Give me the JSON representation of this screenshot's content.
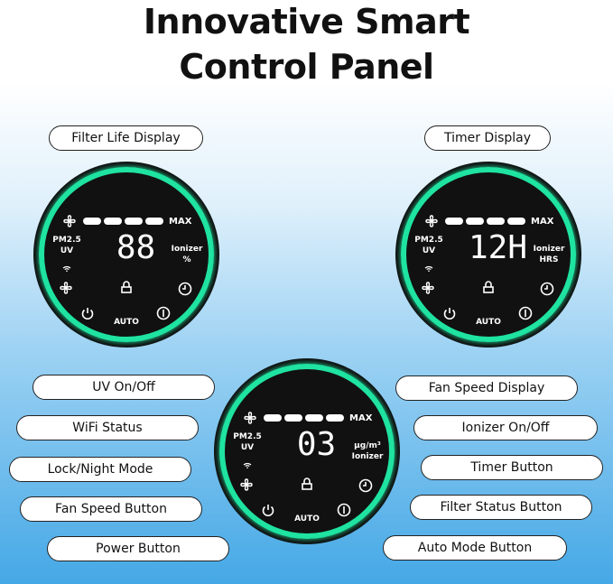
{
  "title": {
    "line1": "Innovative Smart",
    "line2": "Control Panel"
  },
  "labels": {
    "filter_life": "Filter Life Display",
    "timer_display": "Timer Display",
    "uv": "UV On/Off",
    "wifi": "WiFi Status",
    "lock": "Lock/Night Mode",
    "fan_btn": "Fan Speed Button",
    "power": "Power Button",
    "fan_display": "Fan Speed Display",
    "ionizer": "Ionizer On/Off",
    "timer_btn": "Timer Button",
    "filter_status": "Filter Status Button",
    "auto": "Auto Mode Button"
  },
  "dials": [
    {
      "max": "MAX",
      "pm": "PM2.5",
      "uv": "UV",
      "digits": "88",
      "right1": "Ionizer",
      "right2": "%",
      "auto": "AUTO"
    },
    {
      "max": "MAX",
      "pm": "PM2.5",
      "uv": "UV",
      "digits": "12H",
      "right1": "Ionizer",
      "right2": "HRS",
      "auto": "AUTO"
    },
    {
      "max": "MAX",
      "pm": "PM2.5",
      "uv": "UV",
      "digits": "03",
      "right1": "µg/m³",
      "right2": "Ionizer",
      "auto": "AUTO"
    }
  ],
  "colors": {
    "ring": "#1fe3a0",
    "face": "#111111"
  }
}
